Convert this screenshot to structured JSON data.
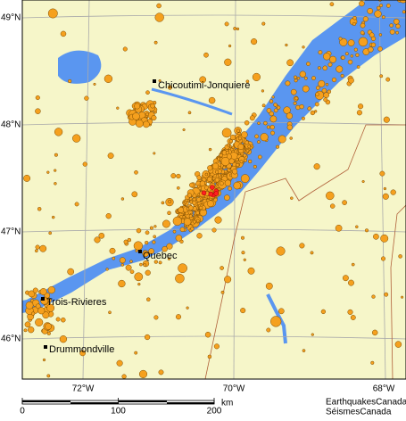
{
  "map": {
    "lat_labels": [
      "49°N",
      "48°N",
      "47°N",
      "46°N"
    ],
    "lon_labels": [
      "72°W",
      "70°W",
      "68°W"
    ],
    "cities": [
      "Chicoutimi-Jonquiere",
      "Quebec",
      "Trois-Rivieres",
      "Drummondville"
    ],
    "scale": {
      "ticks": [
        0,
        100,
        200
      ],
      "unit": "km"
    },
    "credits": [
      "EarthquakesCanada",
      "SéismesCanada"
    ]
  }
}
